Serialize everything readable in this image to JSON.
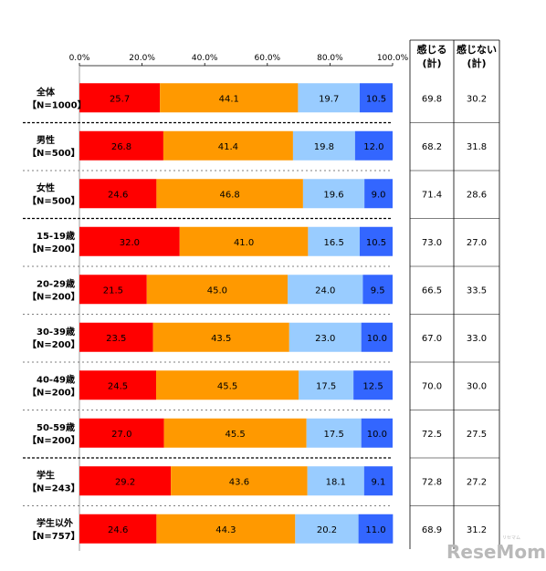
{
  "chart_data": {
    "type": "bar",
    "orientation": "horizontal",
    "stacked": true,
    "x_ticks": [
      "0.0%",
      "20.0%",
      "40.0%",
      "60.0%",
      "80.0%",
      "100.0%"
    ],
    "xlim": [
      0,
      100
    ],
    "series_colors": [
      "#ff0000",
      "#ff9900",
      "#99ccff",
      "#3366ff"
    ],
    "categories": [
      [
        "全体",
        "【N=1000】"
      ],
      [
        "男性",
        "【N=500】"
      ],
      [
        "女性",
        "【N=500】"
      ],
      [
        "15-19歳",
        "【N=200】"
      ],
      [
        "20-29歳",
        "【N=200】"
      ],
      [
        "30-39歳",
        "【N=200】"
      ],
      [
        "40-49歳",
        "【N=200】"
      ],
      [
        "50-59歳",
        "【N=200】"
      ],
      [
        "学生",
        "【N=243】"
      ],
      [
        "学生以外",
        "【N=757】"
      ]
    ],
    "values": [
      [
        25.7,
        44.1,
        19.7,
        10.5
      ],
      [
        26.8,
        41.4,
        19.8,
        12.0
      ],
      [
        24.6,
        46.8,
        19.6,
        9.0
      ],
      [
        32.0,
        41.0,
        16.5,
        10.5
      ],
      [
        21.5,
        45.0,
        24.0,
        9.5
      ],
      [
        23.5,
        43.5,
        23.0,
        10.0
      ],
      [
        24.5,
        45.5,
        17.5,
        12.5
      ],
      [
        27.0,
        45.5,
        17.5,
        10.0
      ],
      [
        29.2,
        43.6,
        18.1,
        9.1
      ],
      [
        24.6,
        44.3,
        20.2,
        11.0
      ]
    ],
    "summary_table": {
      "headers": [
        [
          "感じる",
          "(計)"
        ],
        [
          "感じない",
          "(計)"
        ]
      ],
      "rows": [
        [
          "69.8",
          "30.2"
        ],
        [
          "68.2",
          "31.8"
        ],
        [
          "71.4",
          "28.6"
        ],
        [
          "73.0",
          "27.0"
        ],
        [
          "66.5",
          "33.5"
        ],
        [
          "67.0",
          "33.0"
        ],
        [
          "70.0",
          "30.0"
        ],
        [
          "72.5",
          "27.5"
        ],
        [
          "72.8",
          "27.2"
        ],
        [
          "68.9",
          "31.2"
        ]
      ]
    },
    "group_separators_after": [
      0,
      2,
      7
    ]
  },
  "watermark": {
    "text": "ReseMom",
    "ruby": "リセマム"
  }
}
